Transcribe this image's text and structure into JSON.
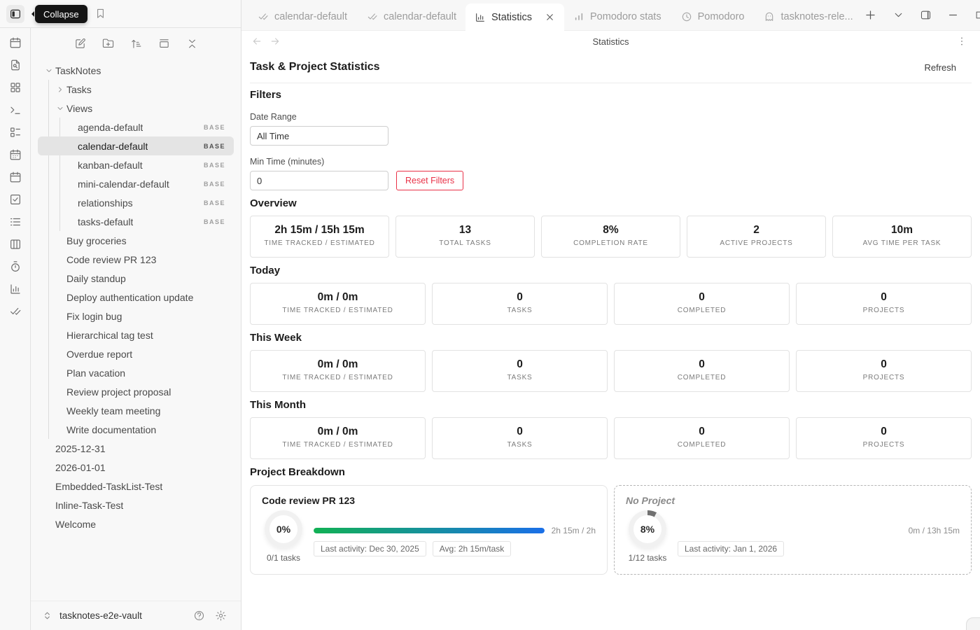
{
  "tooltip": {
    "label": "Collapse"
  },
  "ribbon": {
    "icons": [
      "calendar",
      "file-search",
      "layout-grid",
      "terminal",
      "layout-list",
      "calendar-dots",
      "calendar",
      "check-square",
      "list",
      "columns",
      "timer",
      "chart-column",
      "check-check"
    ]
  },
  "sidebar": {
    "nav_icons": [
      "square-pen",
      "folder-plus",
      "sort-asc",
      "gallery",
      "chevrons-collapse"
    ],
    "tree": [
      {
        "label": "TaskNotes",
        "level": 0,
        "chevron": "down"
      },
      {
        "label": "Tasks",
        "level": 1,
        "chevron": "right"
      },
      {
        "label": "Views",
        "level": 1,
        "chevron": "down"
      },
      {
        "label": "agenda-default",
        "level": 2,
        "badge": "BASE"
      },
      {
        "label": "calendar-default",
        "level": 2,
        "badge": "BASE",
        "selected": true
      },
      {
        "label": "kanban-default",
        "level": 2,
        "badge": "BASE"
      },
      {
        "label": "mini-calendar-default",
        "level": 2,
        "badge": "BASE"
      },
      {
        "label": "relationships",
        "level": 2,
        "badge": "BASE"
      },
      {
        "label": "tasks-default",
        "level": 2,
        "badge": "BASE"
      },
      {
        "label": "Buy groceries",
        "level": 1
      },
      {
        "label": "Code review PR 123",
        "level": 1
      },
      {
        "label": "Daily standup",
        "level": 1
      },
      {
        "label": "Deploy authentication update",
        "level": 1
      },
      {
        "label": "Fix login bug",
        "level": 1
      },
      {
        "label": "Hierarchical tag test",
        "level": 1
      },
      {
        "label": "Overdue report",
        "level": 1
      },
      {
        "label": "Plan vacation",
        "level": 1
      },
      {
        "label": "Review project proposal",
        "level": 1
      },
      {
        "label": "Weekly team meeting",
        "level": 1
      },
      {
        "label": "Write documentation",
        "level": 1
      },
      {
        "label": "2025-12-31",
        "level": 0
      },
      {
        "label": "2026-01-01",
        "level": 0
      },
      {
        "label": "Embedded-TaskList-Test",
        "level": 0
      },
      {
        "label": "Inline-Task-Test",
        "level": 0
      },
      {
        "label": "Welcome",
        "level": 0
      }
    ],
    "vault": {
      "name": "tasknotes-e2e-vault"
    }
  },
  "tabbar": {
    "tabs": [
      {
        "label": "calendar-default",
        "icon": "check-check"
      },
      {
        "label": "calendar-default",
        "icon": "check-check"
      },
      {
        "label": "Statistics",
        "icon": "chart-column",
        "active": true,
        "closable": true
      },
      {
        "label": "Pomodoro stats",
        "icon": "signal-bars"
      },
      {
        "label": "Pomodoro",
        "icon": "clock"
      },
      {
        "label": "tasknotes-rele...",
        "icon": "ghost"
      }
    ],
    "actions": [
      "plus",
      "chevron-down",
      "panel-right"
    ],
    "window_controls": [
      "minus",
      "square",
      "x"
    ]
  },
  "view": {
    "title": "Statistics"
  },
  "main": {
    "heading": "Task & Project Statistics",
    "refresh_label": "Refresh",
    "filters": {
      "title": "Filters",
      "date_range_label": "Date Range",
      "date_range_value": "All Time",
      "min_time_label": "Min Time (minutes)",
      "min_time_value": "0",
      "reset_label": "Reset Filters"
    },
    "sections": [
      {
        "title": "Overview",
        "cards": [
          {
            "value": "2h 15m / 15h 15m",
            "label": "TIME TRACKED / ESTIMATED"
          },
          {
            "value": "13",
            "label": "TOTAL TASKS"
          },
          {
            "value": "8%",
            "label": "COMPLETION RATE"
          },
          {
            "value": "2",
            "label": "ACTIVE PROJECTS"
          },
          {
            "value": "10m",
            "label": "AVG TIME PER TASK"
          }
        ]
      },
      {
        "title": "Today",
        "cards": [
          {
            "value": "0m / 0m",
            "label": "TIME TRACKED / ESTIMATED"
          },
          {
            "value": "0",
            "label": "TASKS"
          },
          {
            "value": "0",
            "label": "COMPLETED"
          },
          {
            "value": "0",
            "label": "PROJECTS"
          }
        ]
      },
      {
        "title": "This Week",
        "cards": [
          {
            "value": "0m / 0m",
            "label": "TIME TRACKED / ESTIMATED"
          },
          {
            "value": "0",
            "label": "TASKS"
          },
          {
            "value": "0",
            "label": "COMPLETED"
          },
          {
            "value": "0",
            "label": "PROJECTS"
          }
        ]
      },
      {
        "title": "This Month",
        "cards": [
          {
            "value": "0m / 0m",
            "label": "TIME TRACKED / ESTIMATED"
          },
          {
            "value": "0",
            "label": "TASKS"
          },
          {
            "value": "0",
            "label": "COMPLETED"
          },
          {
            "value": "0",
            "label": "PROJECTS"
          }
        ]
      }
    ],
    "project_breakdown": {
      "title": "Project Breakdown",
      "projects": [
        {
          "name": "Code review PR 123",
          "percent": "0%",
          "ring_percent": 0,
          "tasks": "0/1 tasks",
          "progress": 100,
          "time": "2h 15m / 2h",
          "chips": [
            "Last activity: Dec 30, 2025",
            "Avg: 2h 15m/task"
          ],
          "dashed": false
        },
        {
          "name": "No Project",
          "percent": "8%",
          "ring_percent": 8,
          "tasks": "1/12 tasks",
          "progress": 0,
          "time": "0m / 13h 15m",
          "chips": [
            "Last activity: Jan 1, 2026"
          ],
          "dashed": true
        }
      ]
    }
  },
  "colors": {
    "accent_red": "#e93147",
    "bar_gradient_start": "#12b154",
    "bar_gradient_end": "#1a6fe8",
    "ring_track": "#f1f1f1",
    "ring_fill": "#707070"
  }
}
